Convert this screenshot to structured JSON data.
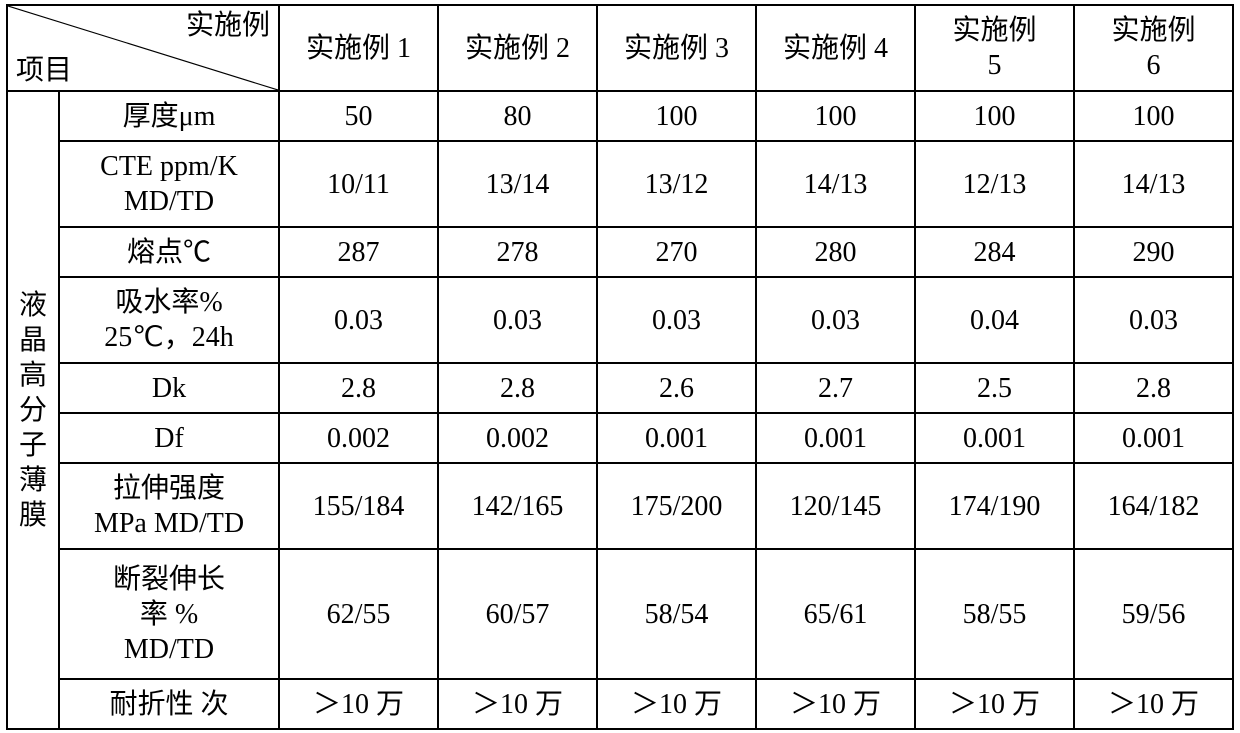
{
  "header": {
    "diag_top": "实施例",
    "diag_bottom": "项目",
    "examples": [
      "实施例 1",
      "实施例 2",
      "实施例 3",
      "实施例 4",
      "实施例\n5",
      "实施例\n6"
    ]
  },
  "rowgroup_label": "液晶高分子薄膜",
  "properties": [
    "厚度μm",
    "CTE ppm/K\nMD/TD",
    "熔点℃",
    "吸水率%\n25℃，24h",
    "Dk",
    "Df",
    "拉伸强度\nMPa MD/TD",
    "断裂伸长\n率  %\nMD/TD",
    "耐折性  次"
  ],
  "values": [
    [
      "50",
      "80",
      "100",
      "100",
      "100",
      "100"
    ],
    [
      "10/11",
      "13/14",
      "13/12",
      "14/13",
      "12/13",
      "14/13"
    ],
    [
      "287",
      "278",
      "270",
      "280",
      "284",
      "290"
    ],
    [
      "0.03",
      "0.03",
      "0.03",
      "0.03",
      "0.04",
      "0.03"
    ],
    [
      "2.8",
      "2.8",
      "2.6",
      "2.7",
      "2.5",
      "2.8"
    ],
    [
      "0.002",
      "0.002",
      "0.001",
      "0.001",
      "0.001",
      "0.001"
    ],
    [
      "155/184",
      "142/165",
      "175/200",
      "120/145",
      "174/190",
      "164/182"
    ],
    [
      "62/55",
      "60/57",
      "58/54",
      "65/61",
      "58/55",
      "59/56"
    ],
    [
      "＞10 万",
      "＞10 万",
      "＞10 万",
      "＞10 万",
      "＞10 万",
      "＞10 万"
    ]
  ],
  "style": {
    "border_color": "#000000",
    "text_color": "#000000",
    "background_color": "#ffffff",
    "font_size_pt": 21,
    "font_family": "SimSun"
  }
}
